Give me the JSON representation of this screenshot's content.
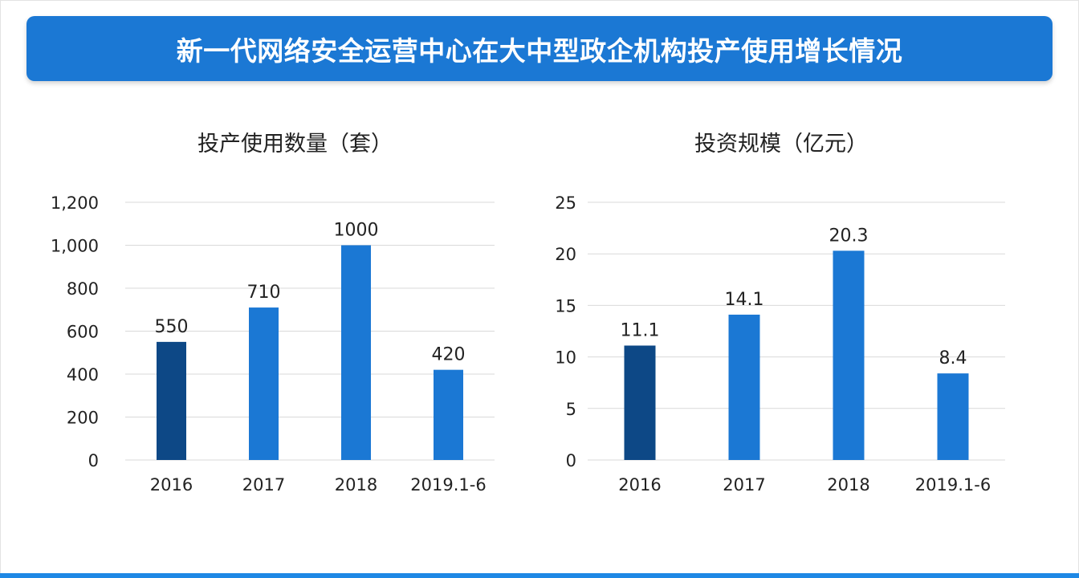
{
  "header": {
    "title": "新一代网络安全运营中心在大中型政企机构投产使用增长情况"
  },
  "colors": {
    "banner": "#1b78d4",
    "bar_primary": "#1b78d4",
    "bar_highlight": "#0d4886",
    "grid": "#d9d9d9",
    "text": "#222222"
  },
  "chart_data": [
    {
      "type": "bar",
      "title": "投产使用数量（套）",
      "categories": [
        "2016",
        "2017",
        "2018",
        "2019.1-6"
      ],
      "values": [
        550,
        710,
        1000,
        420
      ],
      "value_labels": [
        "550",
        "710",
        "1000",
        "420"
      ],
      "ylim": [
        0,
        1200
      ],
      "y_ticks": [
        0,
        200,
        400,
        600,
        800,
        1000,
        1200
      ],
      "y_tick_labels": [
        "0",
        "200",
        "400",
        "600",
        "800",
        "1,000",
        "1,200"
      ],
      "grid": true,
      "legend": false,
      "highlight_index": 0
    },
    {
      "type": "bar",
      "title": "投资规模（亿元）",
      "categories": [
        "2016",
        "2017",
        "2018",
        "2019.1-6"
      ],
      "values": [
        11.1,
        14.1,
        20.3,
        8.4
      ],
      "value_labels": [
        "11.1",
        "14.1",
        "20.3",
        "8.4"
      ],
      "ylim": [
        0,
        25
      ],
      "y_ticks": [
        0,
        5,
        10,
        15,
        20,
        25
      ],
      "y_tick_labels": [
        "0",
        "5",
        "10",
        "15",
        "20",
        "25"
      ],
      "grid": true,
      "legend": false,
      "highlight_index": 0
    }
  ]
}
